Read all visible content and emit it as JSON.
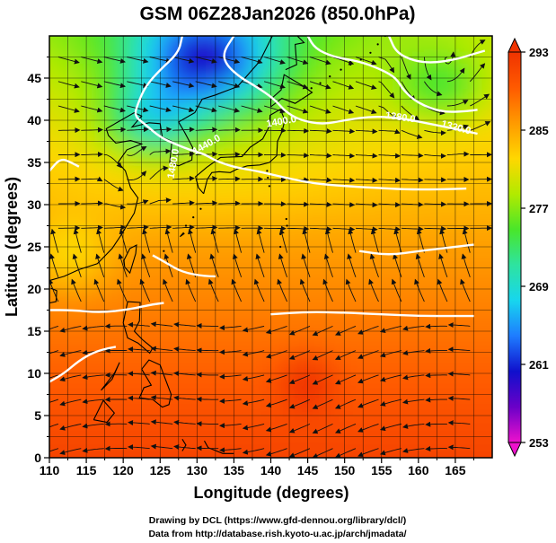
{
  "title": "GSM 06Z28Jan2026 (850.0hPa)",
  "axes": {
    "xlabel": "Longitude (degrees)",
    "ylabel": "Latitude  (degrees)",
    "x_ticks": [
      "110",
      "115",
      "120",
      "125",
      "130",
      "135",
      "140",
      "145",
      "150",
      "155",
      "160",
      "165"
    ],
    "y_ticks": [
      "0",
      "5",
      "10",
      "15",
      "20",
      "25",
      "30",
      "35",
      "40",
      "45"
    ],
    "xlim": [
      110,
      170
    ],
    "ylim": [
      0,
      50
    ]
  },
  "colorbar": {
    "ticks": [
      "253",
      "261",
      "269",
      "277",
      "285",
      "293"
    ],
    "range": [
      253,
      293
    ],
    "colors": [
      "#ee11cc",
      "#6a00c8",
      "#1010cc",
      "#1e7cff",
      "#17d6ee",
      "#2ee3a0",
      "#49e62a",
      "#b2ea00",
      "#ffd700",
      "#ff9a00",
      "#ff5a00",
      "#f03300"
    ]
  },
  "contour_labels": [
    {
      "text": "1400.0",
      "lon": 141.5,
      "lat": 39.5,
      "angle": -10
    },
    {
      "text": "1440.0",
      "lon": 131.5,
      "lat": 36.8,
      "angle": -30
    },
    {
      "text": "1380.0",
      "lon": 157.5,
      "lat": 40.0,
      "angle": 8
    },
    {
      "text": "1320.0",
      "lon": 165.0,
      "lat": 38.8,
      "angle": 15
    },
    {
      "text": "1480.0",
      "lon": 127.2,
      "lat": 34.8,
      "angle": -80
    }
  ],
  "footer": {
    "line1": "Drawing by DCL (https://www.gfd-dennou.org/library/dcl/)",
    "line2": "Data from http://database.rish.kyoto-u.ac.jp/arch/jmadata/"
  },
  "chart_data": {
    "type": "heatmap",
    "title": "GSM 06Z28Jan2026 (850.0hPa)",
    "xlabel": "Longitude (degrees)",
    "ylabel": "Latitude  (degrees)",
    "xlim": [
      110,
      170
    ],
    "ylim": [
      0,
      50
    ],
    "grid": true,
    "variable_range": [
      253,
      293
    ],
    "colorbar_ticks": [
      253,
      261,
      269,
      277,
      285,
      293
    ],
    "contour_levels": [
      1320,
      1380,
      1400,
      1440,
      1480
    ]
  }
}
